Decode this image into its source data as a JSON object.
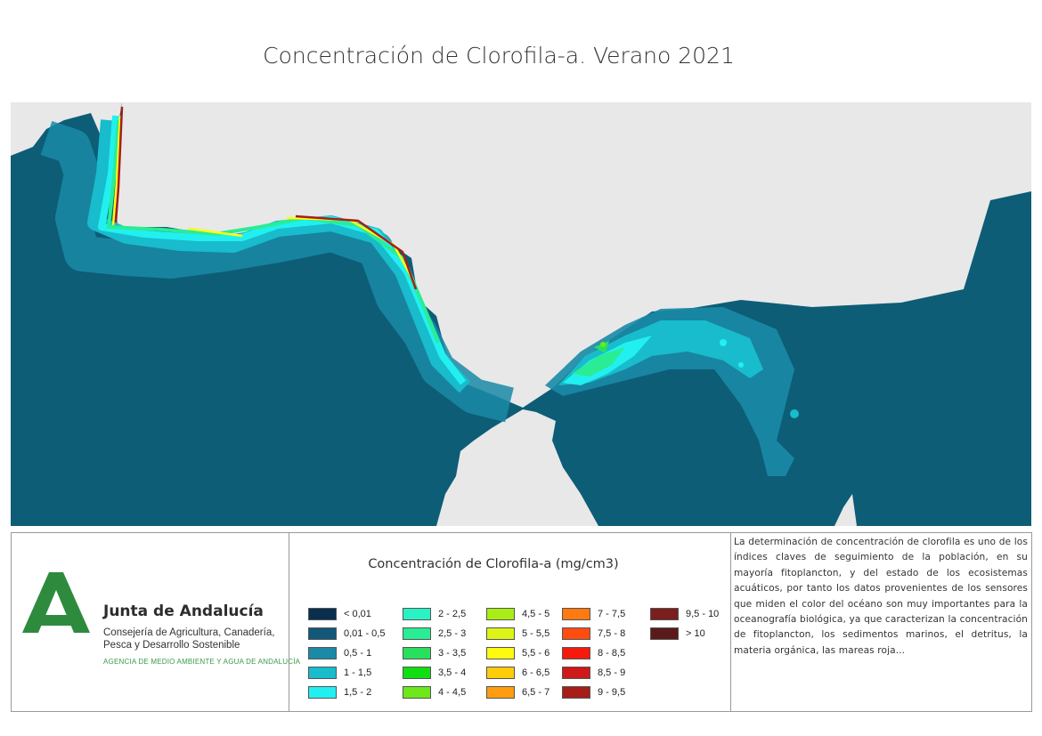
{
  "title": "Concentración de Clorofila-a. Verano 2021",
  "map": {
    "land_color": "#e8e8e8",
    "ocean_color": "#0d5d77",
    "description_features": [
      "atlantic-coast",
      "strait-of-gibraltar",
      "alboran-sea",
      "north-africa"
    ]
  },
  "logo": {
    "org_name": "Junta de Andalucía",
    "department": "Consejería de Agricultura, Canadería, Pesca y Desarrollo Sostenible",
    "agency": "AGENCIA DE MEDIO AMBIENTE Y AGUA DE ANDALUCÍA",
    "brand_color": "#2e8b3e"
  },
  "legend": {
    "title": "Concentración de Clorofila-a (mg/cm3)",
    "items": [
      {
        "label": "< 0,01",
        "color": "#0a2f4e"
      },
      {
        "label": "0,01 - 0,5",
        "color": "#12587a"
      },
      {
        "label": "0,5 - 1",
        "color": "#1a8aa6"
      },
      {
        "label": "1 - 1,5",
        "color": "#18bccc"
      },
      {
        "label": "1,5 - 2",
        "color": "#22f0f0"
      },
      {
        "label": "2 - 2,5",
        "color": "#2af2c4"
      },
      {
        "label": "2,5 - 3",
        "color": "#2aec94"
      },
      {
        "label": "3 - 3,5",
        "color": "#28e05e"
      },
      {
        "label": "3,5 - 4",
        "color": "#11de11"
      },
      {
        "label": "4 - 4,5",
        "color": "#6ee81a"
      },
      {
        "label": "4,5 - 5",
        "color": "#a8ee16"
      },
      {
        "label": "5 - 5,5",
        "color": "#dcf516"
      },
      {
        "label": "5,5 - 6",
        "color": "#fffb10"
      },
      {
        "label": "6 - 6,5",
        "color": "#ffcc0a"
      },
      {
        "label": "6,5 - 7",
        "color": "#ff9c10"
      },
      {
        "label": "7 - 7,5",
        "color": "#ff7a10"
      },
      {
        "label": "7,5 - 8",
        "color": "#ff4d10"
      },
      {
        "label": "8 - 8,5",
        "color": "#f51a0c"
      },
      {
        "label": "8,5 - 9",
        "color": "#d01818"
      },
      {
        "label": "9 - 9,5",
        "color": "#a51e1a"
      },
      {
        "label": "9,5 - 10",
        "color": "#7a1e1e"
      },
      {
        "label": "> 10",
        "color": "#5a1a1a"
      }
    ]
  },
  "description": "La determinación de concentración de clorofila es uno de los índices claves de seguimiento de la población, en su mayoría fitoplancton, y del estado de los ecosistemas acuáticos, por tanto los datos provenientes de los sensores que miden el color del océano son muy importantes para la oceanografía biológica, ya que caracterizan la concentración de fitoplancton, los sedimentos marinos, el detritus, la materia orgánica, las mareas roja..."
}
